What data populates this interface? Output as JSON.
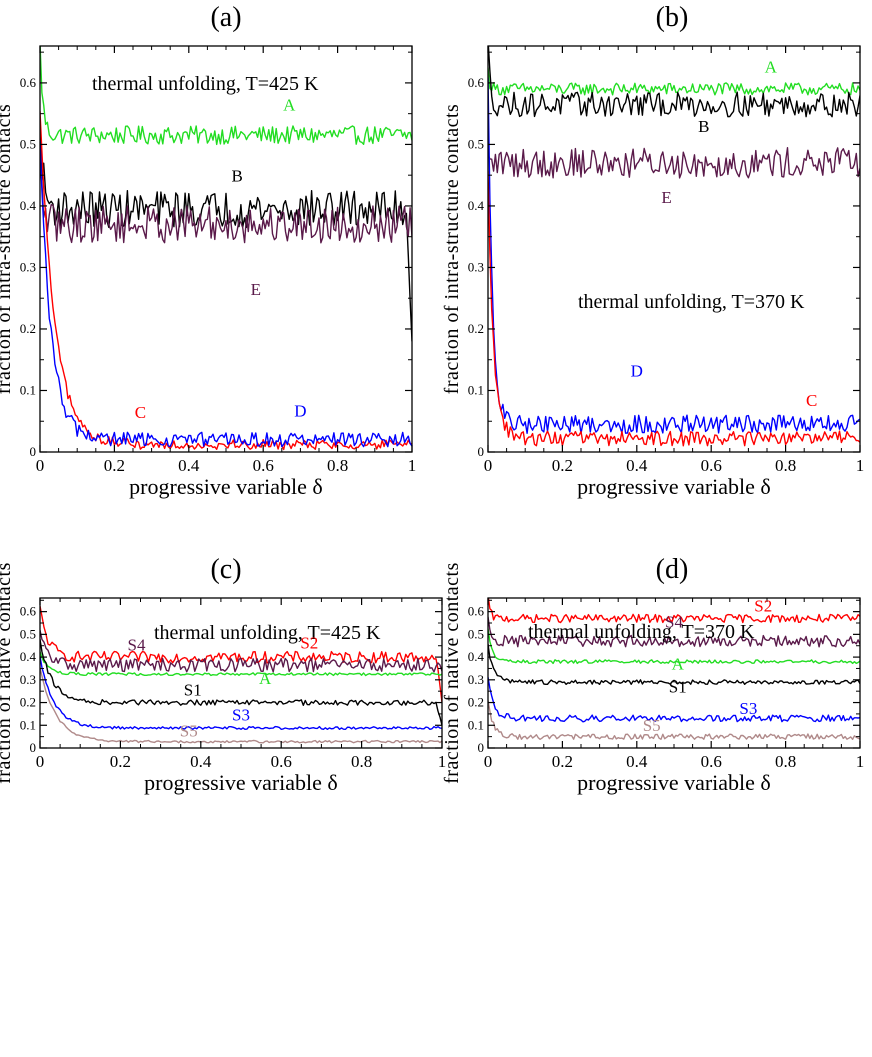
{
  "figure": {
    "description_label": "Fraction of contacts vs progressive variable, four panels"
  },
  "chart_data": [
    {
      "type": "line",
      "panel": "(a)",
      "annotation": "thermal unfolding, T=425 K",
      "xlabel": "progressive variable δ",
      "ylabel": "fraction of intra-structure contacts",
      "xlim": [
        0,
        1
      ],
      "ylim": [
        0,
        0.66
      ],
      "xticks": [
        0,
        0.2,
        0.4,
        0.6,
        0.8,
        1
      ],
      "xtick_labels": [
        "0",
        "0.2",
        "0.4",
        "0.6",
        "0.8",
        "1"
      ],
      "yticks": [
        0,
        0.1,
        0.2,
        0.3,
        0.4,
        0.5,
        0.6
      ],
      "ytick_labels": [
        "0",
        "0.1",
        "0.2",
        "0.3",
        "0.4",
        "0.5",
        "0.6"
      ],
      "series": [
        {
          "name": "A",
          "color": "#22dd22",
          "start": 0.66,
          "plateau": 0.515,
          "decay": 0.008,
          "noise": 0.015,
          "label_at": [
            0.67,
            0.555
          ]
        },
        {
          "name": "B",
          "color": "#000000",
          "start": 0.52,
          "plateau": 0.395,
          "decay": 0.01,
          "noise": 0.03,
          "end_drop": 0.18,
          "label_at": [
            0.53,
            0.44
          ]
        },
        {
          "name": "E",
          "color": "#5a1a4a",
          "start": 0.45,
          "plateau": 0.37,
          "decay": 0.01,
          "noise": 0.03,
          "label_at": [
            0.58,
            0.255
          ]
        },
        {
          "name": "C",
          "color": "#ff0000",
          "start": 0.55,
          "plateau": 0.012,
          "decay": 0.04,
          "noise": 0.008,
          "label_at": [
            0.27,
            0.055
          ]
        },
        {
          "name": "D",
          "color": "#0000ff",
          "start": 0.5,
          "plateau": 0.02,
          "decay": 0.03,
          "noise": 0.012,
          "label_at": [
            0.7,
            0.058
          ]
        }
      ]
    },
    {
      "type": "line",
      "panel": "(b)",
      "annotation": "thermal unfolding, T=370 K",
      "xlabel": "progressive variable δ",
      "ylabel": "fraction of intra-structure contacts",
      "xlim": [
        0,
        1
      ],
      "ylim": [
        0,
        0.66
      ],
      "xticks": [
        0,
        0.2,
        0.4,
        0.6,
        0.8,
        1
      ],
      "xtick_labels": [
        "0",
        "0.2",
        "0.4",
        "0.6",
        "0.8",
        "1"
      ],
      "yticks": [
        0,
        0.1,
        0.2,
        0.3,
        0.4,
        0.5,
        0.6
      ],
      "ytick_labels": [
        "0",
        "0.1",
        "0.2",
        "0.3",
        "0.4",
        "0.5",
        "0.6"
      ],
      "series": [
        {
          "name": "A",
          "color": "#22dd22",
          "start": 0.62,
          "plateau": 0.59,
          "decay": 0.005,
          "noise": 0.01,
          "label_at": [
            0.76,
            0.617
          ]
        },
        {
          "name": "B",
          "color": "#000000",
          "start": 0.66,
          "plateau": 0.565,
          "decay": 0.006,
          "noise": 0.02,
          "label_at": [
            0.58,
            0.52
          ]
        },
        {
          "name": "E",
          "color": "#5a1a4a",
          "start": 0.47,
          "plateau": 0.47,
          "decay": 0.005,
          "noise": 0.025,
          "label_at": [
            0.48,
            0.405
          ]
        },
        {
          "name": "D",
          "color": "#0000ff",
          "start": 0.6,
          "plateau": 0.045,
          "decay": 0.012,
          "noise": 0.015,
          "label_at": [
            0.4,
            0.123
          ]
        },
        {
          "name": "C",
          "color": "#ff0000",
          "start": 0.45,
          "plateau": 0.022,
          "decay": 0.015,
          "noise": 0.012,
          "label_at": [
            0.87,
            0.075
          ]
        }
      ]
    },
    {
      "type": "line",
      "panel": "(c)",
      "annotation": "thermal unfolding, T=425 K",
      "xlabel": "progressive variable δ",
      "ylabel": "fraction of native contacts",
      "xlim": [
        0,
        1
      ],
      "ylim": [
        0,
        0.66
      ],
      "xticks": [
        0,
        0.2,
        0.4,
        0.6,
        0.8,
        1
      ],
      "xtick_labels": [
        "0",
        "0.2",
        "0.4",
        "0.6",
        "0.8",
        "1"
      ],
      "yticks": [
        0,
        0.1,
        0.2,
        0.3,
        0.4,
        0.5,
        0.6
      ],
      "ytick_labels": [
        "0",
        "0.1",
        "0.2",
        "0.3",
        "0.4",
        "0.5",
        "0.6"
      ],
      "series": [
        {
          "name": "S2",
          "color": "#ff0000",
          "start": 0.61,
          "plateau": 0.4,
          "decay": 0.02,
          "noise": 0.025,
          "end_drop": 0.2,
          "label_at": [
            0.67,
            0.438
          ]
        },
        {
          "name": "S4",
          "color": "#5a1a4a",
          "start": 0.5,
          "plateau": 0.365,
          "decay": 0.02,
          "noise": 0.03,
          "label_at": [
            0.24,
            0.428
          ]
        },
        {
          "name": "A",
          "color": "#22dd22",
          "start": 0.42,
          "plateau": 0.325,
          "decay": 0.02,
          "noise": 0.006,
          "label_at": [
            0.56,
            0.282
          ]
        },
        {
          "name": "S1",
          "color": "#000000",
          "start": 0.47,
          "plateau": 0.2,
          "decay": 0.03,
          "noise": 0.012,
          "end_drop": 0.1,
          "label_at": [
            0.38,
            0.232
          ]
        },
        {
          "name": "S3",
          "color": "#0000ff",
          "start": 0.4,
          "plateau": 0.088,
          "decay": 0.035,
          "noise": 0.006,
          "label_at": [
            0.5,
            0.122
          ]
        },
        {
          "name": "S5",
          "color": "#b08a8a",
          "start": 0.35,
          "plateau": 0.028,
          "decay": 0.04,
          "noise": 0.005,
          "label_at": [
            0.37,
            0.05
          ]
        }
      ]
    },
    {
      "type": "line",
      "panel": "(d)",
      "annotation": "thermal unfolding, T=370 K",
      "xlabel": "progressive variable δ",
      "ylabel": "fraction of native contacts",
      "xlim": [
        0,
        1
      ],
      "ylim": [
        0,
        0.66
      ],
      "xticks": [
        0,
        0.2,
        0.4,
        0.6,
        0.8,
        1
      ],
      "xtick_labels": [
        "0",
        "0.2",
        "0.4",
        "0.6",
        "0.8",
        "1"
      ],
      "yticks": [
        0,
        0.1,
        0.2,
        0.3,
        0.4,
        0.5,
        0.6
      ],
      "ytick_labels": [
        "0",
        "0.1",
        "0.2",
        "0.3",
        "0.4",
        "0.5",
        "0.6"
      ],
      "series": [
        {
          "name": "S2",
          "color": "#ff0000",
          "start": 0.66,
          "plateau": 0.57,
          "decay": 0.006,
          "noise": 0.018,
          "label_at": [
            0.74,
            0.6
          ]
        },
        {
          "name": "S4",
          "color": "#5a1a4a",
          "start": 0.56,
          "plateau": 0.47,
          "decay": 0.01,
          "noise": 0.025,
          "label_at": [
            0.5,
            0.53
          ]
        },
        {
          "name": "A",
          "color": "#22dd22",
          "start": 0.52,
          "plateau": 0.38,
          "decay": 0.012,
          "noise": 0.008,
          "label_at": [
            0.51,
            0.345
          ]
        },
        {
          "name": "S1",
          "color": "#000000",
          "start": 0.45,
          "plateau": 0.29,
          "decay": 0.015,
          "noise": 0.01,
          "label_at": [
            0.51,
            0.245
          ]
        },
        {
          "name": "S3",
          "color": "#0000ff",
          "start": 0.3,
          "plateau": 0.13,
          "decay": 0.015,
          "noise": 0.015,
          "label_at": [
            0.7,
            0.15
          ]
        },
        {
          "name": "S5",
          "color": "#b08a8a",
          "start": 0.2,
          "plateau": 0.05,
          "decay": 0.015,
          "noise": 0.012,
          "label_at": [
            0.44,
            0.075
          ]
        }
      ]
    }
  ]
}
